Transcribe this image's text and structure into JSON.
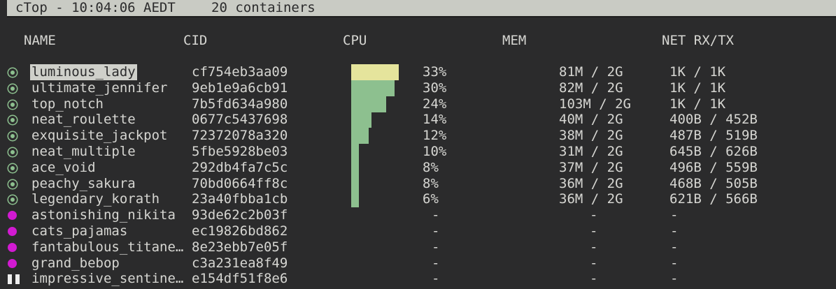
{
  "header": {
    "title": "cTop - 10:04:06 AEDT",
    "count": "20 containers"
  },
  "columns": {
    "name": "NAME",
    "cid": "CID",
    "cpu": "CPU",
    "mem": "MEM",
    "net": "NET RX/TX"
  },
  "colors": {
    "running": "#8dc08f",
    "stopped": "#d21ad2",
    "cpu_bar": "#8dc08f",
    "cpu_bar_top": "#e5e49c",
    "selection": "#cfd0ca"
  },
  "containers": [
    {
      "state": "running",
      "name": "luminous_lady",
      "cid": "cf754eb3aa09",
      "cpu": "33%",
      "cpu_value": 33,
      "mem": "81M / 2G",
      "net": "1K / 1K",
      "selected": true
    },
    {
      "state": "running",
      "name": "ultimate_jennifer",
      "cid": "9eb1e9a6cb91",
      "cpu": "30%",
      "cpu_value": 30,
      "mem": "82M / 2G",
      "net": "1K / 1K"
    },
    {
      "state": "running",
      "name": "top_notch",
      "cid": "7b5fd634a980",
      "cpu": "24%",
      "cpu_value": 24,
      "mem": "103M / 2G",
      "net": "1K / 1K"
    },
    {
      "state": "running",
      "name": "neat_roulette",
      "cid": "0677c5437698",
      "cpu": "14%",
      "cpu_value": 14,
      "mem": "40M / 2G",
      "net": "400B / 452B"
    },
    {
      "state": "running",
      "name": "exquisite_jackpot",
      "cid": "72372078a320",
      "cpu": "12%",
      "cpu_value": 12,
      "mem": "38M / 2G",
      "net": "487B / 519B"
    },
    {
      "state": "running",
      "name": "neat_multiple",
      "cid": "5fbe5928be03",
      "cpu": "10%",
      "cpu_value": 10,
      "mem": "31M / 2G",
      "net": "645B / 626B"
    },
    {
      "state": "running",
      "name": "ace_void",
      "cid": "292db4fa7c5c",
      "cpu": "8%",
      "cpu_value": 8,
      "mem": "37M / 2G",
      "net": "496B / 559B"
    },
    {
      "state": "running",
      "name": "peachy_sakura",
      "cid": "70bd0664ff8c",
      "cpu": "8%",
      "cpu_value": 8,
      "mem": "36M / 2G",
      "net": "468B / 505B"
    },
    {
      "state": "running",
      "name": "legendary_korath",
      "cid": "23a40fbba1cb",
      "cpu": "6%",
      "cpu_value": 6,
      "mem": "36M / 2G",
      "net": "621B / 566B"
    },
    {
      "state": "stopped",
      "name": "astonishing_nikita",
      "cid": "93de62c2b03f",
      "cpu": "-",
      "mem": "-",
      "net": "-"
    },
    {
      "state": "stopped",
      "name": "cats_pajamas",
      "cid": "ec19826bd862",
      "cpu": "-",
      "mem": "-",
      "net": "-"
    },
    {
      "state": "stopped",
      "name": "fantabulous_titane…",
      "cid": "8e23ebb7e05f",
      "cpu": "-",
      "mem": "-",
      "net": "-"
    },
    {
      "state": "stopped",
      "name": "grand_bebop",
      "cid": "c3a231ea8f49",
      "cpu": "-",
      "mem": "-",
      "net": "-"
    },
    {
      "state": "paused",
      "name": "impressive_sentine…",
      "cid": "e154df51f8e6",
      "cpu": "-",
      "mem": "-",
      "net": "-"
    }
  ]
}
